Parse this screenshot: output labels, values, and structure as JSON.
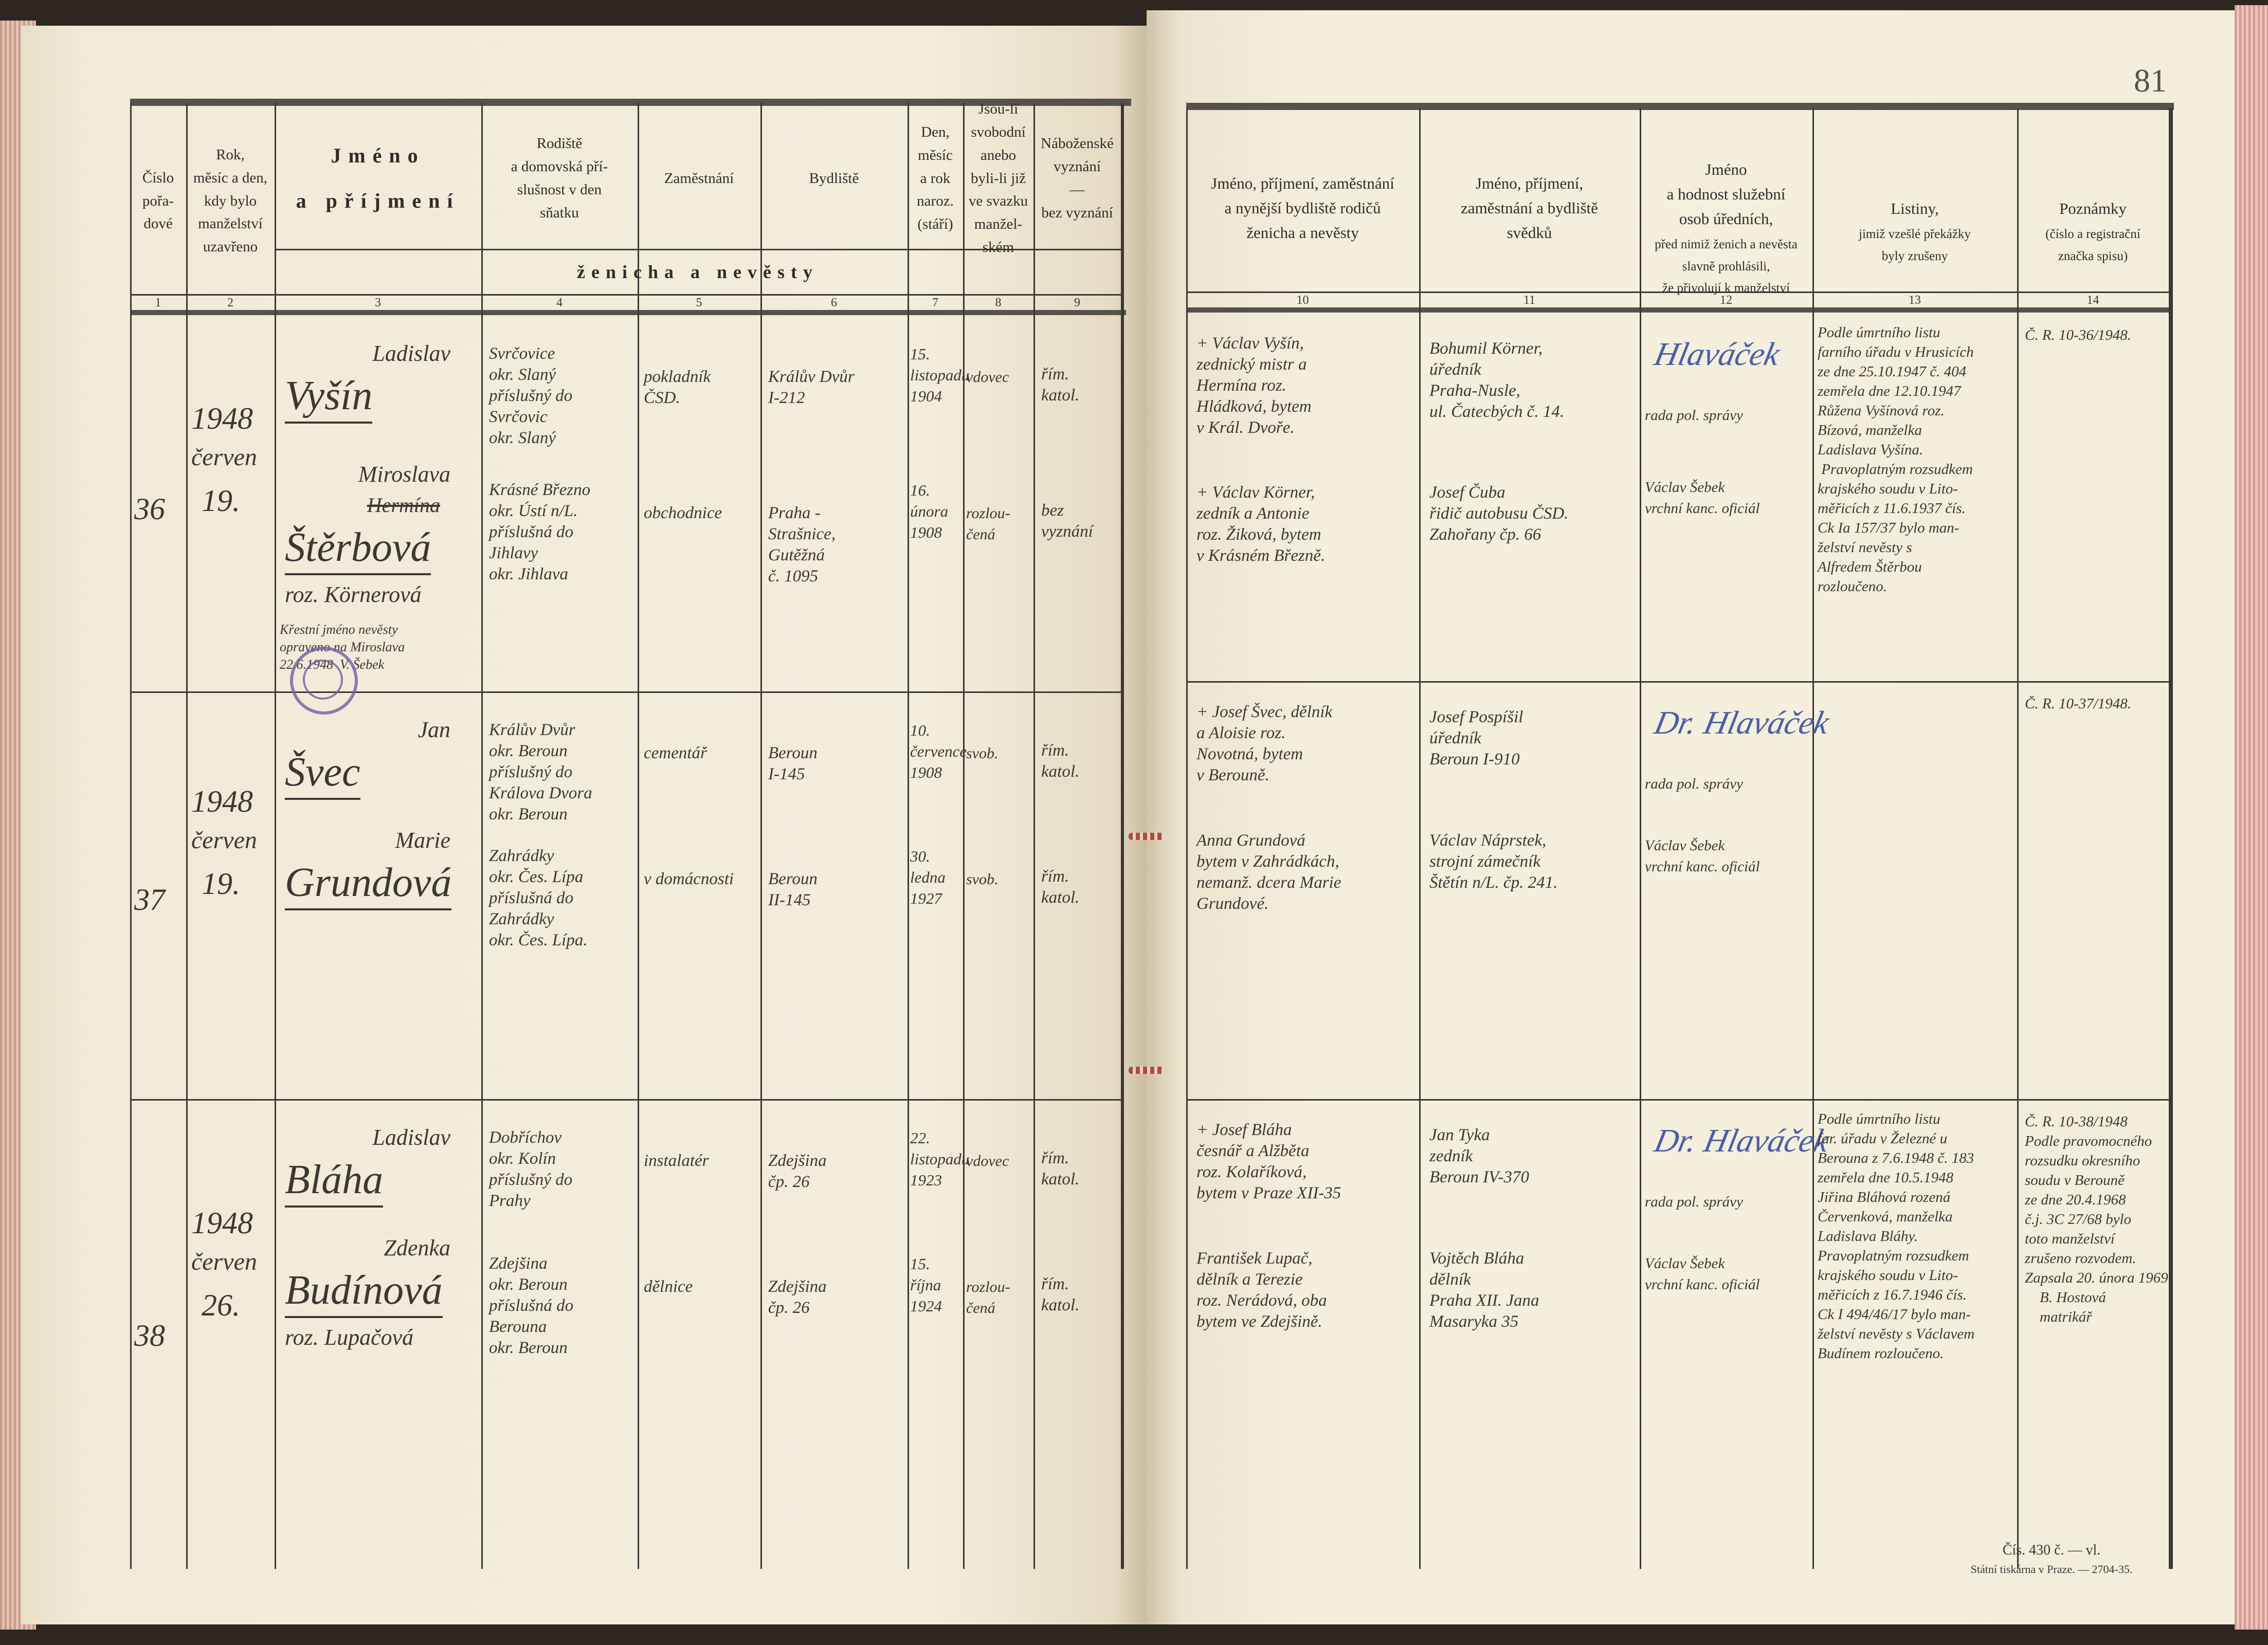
{
  "page_number": "81",
  "left_header": {
    "columns": [
      "Číslo\npořa-\ndové",
      "Rok,\nměsíc a den,\nkdy bylo\nmanželství\nuzavřeno",
      "Jméno\na příjmení",
      "Rodiště\na domovská pří-\nslušnost v den\nsňatku",
      "Zaměstnání",
      "Bydliště",
      "Den,\nměsíc\na rok\nnaroz.\n(stáří)",
      "Jsou-li\nsvobodní\nanebo\nbyli-li již\nve svazku\nmanžel-\nském",
      "Náboženské\nvyznání\n—\nbez vyznání"
    ],
    "span_label": "ženicha a nevěsty",
    "numbers": [
      "1",
      "2",
      "3",
      "4",
      "5",
      "6",
      "7",
      "8",
      "9"
    ]
  },
  "right_header": {
    "columns": [
      {
        "title": "Jméno, příjmení, zaměstnání\na nynější bydliště rodičů\nženicha a nevěsty",
        "sub": ""
      },
      {
        "title": "Jméno, příjmení,\nzaměstnání a bydliště\nsvědků",
        "sub": ""
      },
      {
        "title": "Jméno\na hodnost služební\nosob úředních,",
        "sub": "před nimiž ženich a nevěsta\nslavně prohlásili,\nže přivolují k manželství"
      },
      {
        "title": "Listiny,",
        "sub": "jimiž vzešlé překážky\nbyly zrušeny"
      },
      {
        "title": "Poznámky",
        "sub": "(číslo a registrační\nznačka spisu)"
      }
    ],
    "numbers": [
      "10",
      "11",
      "12",
      "13",
      "14"
    ]
  },
  "entries": [
    {
      "number": "36",
      "year": "1948",
      "month": "červen",
      "day": "19.",
      "groom": {
        "first": "Ladislav",
        "surname": "Vyšín",
        "struck": "",
        "maiden": "",
        "birthplace": "Svrčovice\nokr. Slaný\npříslušný do\nSvrčovic\nokr. Slaný",
        "occupation": "pokladník\nČSD.",
        "residence": "Králův Dvůr\nI-212",
        "birth": "15.\nlistopadu\n1904",
        "status": "vdovec",
        "religion": "řím.\nkatol."
      },
      "bride": {
        "first": "Miroslava",
        "struck": "Hermína",
        "surname": "Štěrbová",
        "maiden": "roz. Körnerová",
        "birthplace": "Krásné Březno\nokr. Ústí n/L.\npříslušná do\nJihlavy\nokr. Jihlava",
        "occupation": "obchodnice",
        "residence": "Praha -\nStrašnice,\nGutěžná\nč. 1095",
        "birth": "16.\núnora\n1908",
        "status": "rozlou-\nčená",
        "religion": "bez\nvyznání"
      },
      "note": "Křestní jméno nevěsty\nopraveno na Miroslava\n22.6.1948  V. Šebek",
      "parents_groom": "+ Václav Vyšín,\nzednický mistr a\nHermína roz.\nHládková, bytem\nv Král. Dvoře.",
      "parents_bride": "+ Václav Körner,\nzedník a Antonie\nroz. Žiková, bytem\nv Krásném Březně.",
      "witness1": "Bohumil Körner,\núředník\nPraha-Nusle,\nul. Čatecbých č. 14.",
      "witness2": "Josef Čuba\nřidič autobusu ČSD.\nZahořany čp. 66",
      "official_signature": "Hlaváček",
      "official_title": "rada pol. správy",
      "official2": "Václav Šebek\nvrchní kanc. oficiál",
      "documents": "Podle úmrtního listu\nfarního úřadu v Hrusicích\nze dne 25.10.1947 č. 404\nzemřela dne 12.10.1947\nRůžena Vyšínová roz.\nBízová, manželka\nLadislava Vyšína.\n Pravoplatným rozsudkem\nkrajského soudu v Lito-\nměřicích z 11.6.1937 čís.\nCk Ia 157/37 bylo man-\nželství nevěsty s\nAlfredem Štěrbou\nrozloučeno.",
      "notes": "Č. R. 10-36/1948."
    },
    {
      "number": "37",
      "year": "1948",
      "month": "červen",
      "day": "19.",
      "groom": {
        "first": "Jan",
        "surname": "Švec",
        "struck": "",
        "maiden": "",
        "birthplace": "Králův Dvůr\nokr. Beroun\npříslušný do\nKrálova Dvora\nokr. Beroun",
        "occupation": "cementář",
        "residence": "Beroun\nI-145",
        "birth": "10.\nčervence\n1908",
        "status": "svob.",
        "religion": "řím.\nkatol."
      },
      "bride": {
        "first": "Marie",
        "struck": "",
        "surname": "Grundová",
        "maiden": "",
        "birthplace": "Zahrádky\nokr. Čes. Lípa\npříslušná do\nZahrádky\nokr. Čes. Lípa.",
        "occupation": "v domácnosti",
        "residence": "Beroun\nII-145",
        "birth": "30.\nledna\n1927",
        "status": "svob.",
        "religion": "řím.\nkatol."
      },
      "note": "",
      "parents_groom": "+ Josef Švec, dělník\na Aloisie roz.\nNovotná, bytem\nv Berouně.",
      "parents_bride": "Anna Grundová\nbytem v Zahrádkách,\nnemanž. dcera Marie\nGrundové.",
      "witness1": "Josef Pospíšil\núředník\nBeroun I-910",
      "witness2": "Václav Náprstek,\nstrojní zámečník\nŠtětín n/L. čp. 241.",
      "official_signature": "Dr. Hlaváček",
      "official_title": "rada pol. správy",
      "official2": "Václav Šebek\nvrchní kanc. oficiál",
      "documents": "",
      "notes": "Č. R. 10-37/1948."
    },
    {
      "number": "38",
      "year": "1948",
      "month": "červen",
      "day": "26.",
      "groom": {
        "first": "Ladislav",
        "surname": "Bláha",
        "struck": "",
        "maiden": "",
        "birthplace": "Dobříchov\nokr. Kolín\npříslušný do\nPrahy",
        "occupation": "instalatér",
        "residence": "Zdejšina\nčp. 26",
        "birth": "22.\nlistopadu\n1923",
        "status": "vdovec",
        "religion": "řím.\nkatol."
      },
      "bride": {
        "first": "Zdenka",
        "struck": "",
        "surname": "Budínová",
        "maiden": "roz. Lupačová",
        "birthplace": "Zdejšina\nokr. Beroun\npříslušná do\nBerouna\nokr. Beroun",
        "occupation": "dělnice",
        "residence": "Zdejšina\nčp. 26",
        "birth": "15.\nříjna\n1924",
        "status": "rozlou-\nčená",
        "religion": "řím.\nkatol."
      },
      "note": "",
      "parents_groom": "+ Josef Bláha\nčesnář a Alžběta\nroz. Kolaříková,\nbytem v Praze XII-35",
      "parents_bride": "František Lupač,\ndělník a Terezie\nroz. Nerádová, oba\nbytem ve Zdejšině.",
      "witness1": "Jan Tyka\nzedník\nBeroun IV-370",
      "witness2": "Vojtěch Bláha\ndělník\nPraha XII. Jana\nMasaryka 35",
      "official_signature": "Dr. Hlaváček",
      "official_title": "rada pol. správy",
      "official2": "Václav Šebek\nvrchní kanc. oficiál",
      "documents": "Podle úmrtního listu\nfar. úřadu v Železné u\nBerouna z 7.6.1948 č. 183\nzemřela dne 10.5.1948\nJiřina Bláhová rozená\nČervenková, manželka\nLadislava Bláhy.\nPravoplatným rozsudkem\nkrajského soudu v Lito-\nměřicích z 16.7.1946 čís.\nCk I 494/46/17 bylo man-\nželství nevěsty s Václavem\nBudínem rozloučeno.",
      "notes": "Č. R. 10-38/1948\nPodle pravomocného\nrozsudku okresního\nsoudu v Berouně\nze dne 20.4.1968\nč.j. 3C 27/68 bylo\ntoto manželství\nzrušeno rozvodem.\nZapsala 20. února 1969\n    B. Hostová\n    matrikář"
    }
  ],
  "footer": {
    "form": "Čís. 430 č. — vl.",
    "printer": "Státní tiskárna v Praze. — 2704-35."
  },
  "colors": {
    "paper": "#f3eddc",
    "ink": "#3c3833",
    "signature_ink": "#4a5fa8",
    "stamp": "#7b5aa6",
    "page_edges": "#d29a92"
  }
}
